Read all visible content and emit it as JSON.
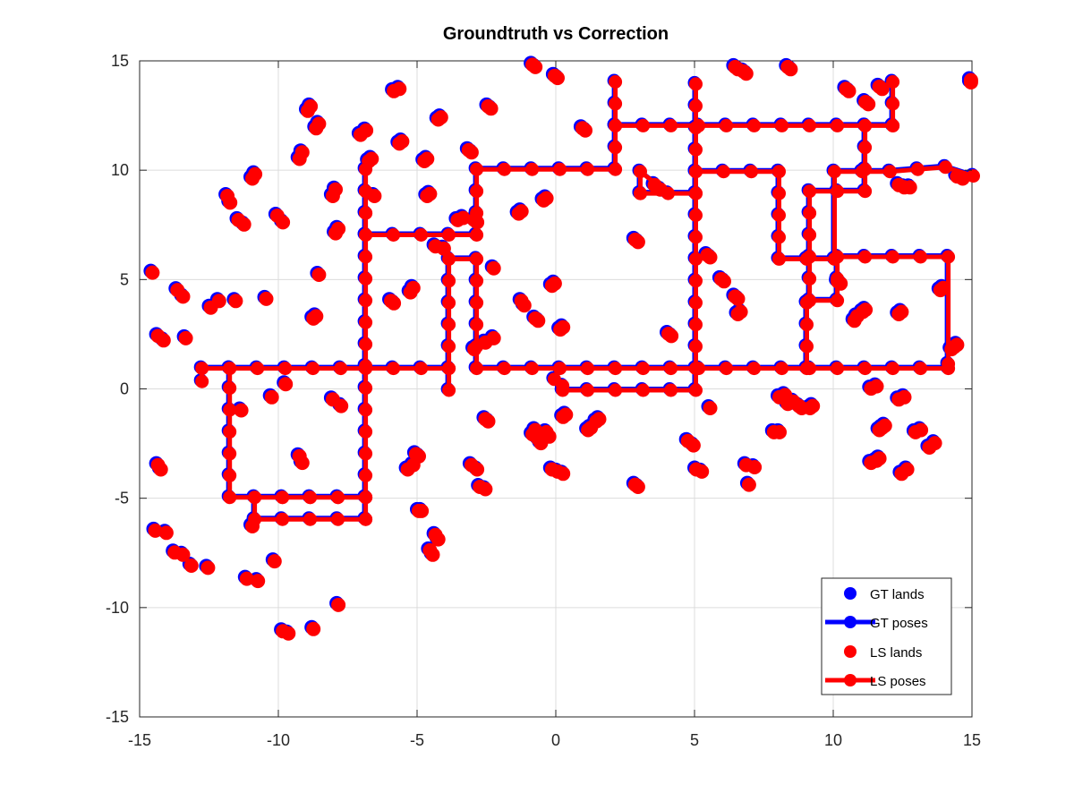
{
  "chart_data": {
    "type": "scatter",
    "title": "Groundtruth vs Correction",
    "xlabel": "",
    "ylabel": "",
    "xlim": [
      -15,
      15
    ],
    "ylim": [
      -15,
      15
    ],
    "xticks": [
      "-15",
      "-10",
      "-5",
      "0",
      "5",
      "10",
      "15"
    ],
    "yticks": [
      "-15",
      "-10",
      "-5",
      "0",
      "5",
      "10",
      "15"
    ],
    "grid": true,
    "legend_position": "bottom-right",
    "legend": [
      {
        "label": "GT lands",
        "color": "#0000ff",
        "style": "markers"
      },
      {
        "label": "GT poses",
        "color": "#0000ff",
        "style": "line+markers"
      },
      {
        "label": "LS lands",
        "color": "#ff0000",
        "style": "markers"
      },
      {
        "label": "LS poses",
        "color": "#ff0000",
        "style": "line+markers"
      }
    ],
    "landmarks": [
      [
        -14.6,
        5.4
      ],
      [
        -14.4,
        2.5
      ],
      [
        -14.2,
        2.3
      ],
      [
        -14.4,
        -3.4
      ],
      [
        -14.3,
        -3.6
      ],
      [
        -14.5,
        -6.4
      ],
      [
        -14.1,
        -6.5
      ],
      [
        -13.8,
        -7.4
      ],
      [
        -13.5,
        -7.5
      ],
      [
        -13.2,
        -8.0
      ],
      [
        -12.6,
        -8.1
      ],
      [
        -13.7,
        4.6
      ],
      [
        -13.5,
        4.3
      ],
      [
        -13.4,
        2.4
      ],
      [
        -12.5,
        3.8
      ],
      [
        -12.2,
        4.1
      ],
      [
        -11.6,
        4.1
      ],
      [
        -11.9,
        8.9
      ],
      [
        -11.8,
        8.6
      ],
      [
        -11.5,
        7.8
      ],
      [
        -11.3,
        7.6
      ],
      [
        -10.9,
        9.9
      ],
      [
        -11.0,
        9.7
      ],
      [
        -10.5,
        4.2
      ],
      [
        -10.1,
        8.0
      ],
      [
        -9.9,
        7.7
      ],
      [
        -11.4,
        -0.9
      ],
      [
        -10.3,
        -0.3
      ],
      [
        -9.8,
        0.3
      ],
      [
        -9.3,
        -3.0
      ],
      [
        -9.2,
        -3.3
      ],
      [
        -11.0,
        -6.2
      ],
      [
        -11.2,
        -8.6
      ],
      [
        -10.8,
        -8.7
      ],
      [
        -10.2,
        -7.8
      ],
      [
        -9.9,
        -11.0
      ],
      [
        -9.7,
        -11.1
      ],
      [
        -8.8,
        -10.9
      ],
      [
        -7.9,
        -9.8
      ],
      [
        -9.2,
        10.9
      ],
      [
        -9.3,
        10.6
      ],
      [
        -8.9,
        13.0
      ],
      [
        -9.0,
        12.8
      ],
      [
        -8.6,
        12.2
      ],
      [
        -8.7,
        12.0
      ],
      [
        -8.7,
        3.4
      ],
      [
        -8.8,
        3.3
      ],
      [
        -8.6,
        5.3
      ],
      [
        -8.0,
        9.2
      ],
      [
        -8.1,
        8.9
      ],
      [
        -7.9,
        7.4
      ],
      [
        -8.0,
        7.2
      ],
      [
        -8.1,
        -0.4
      ],
      [
        -7.8,
        -0.7
      ],
      [
        -7.1,
        11.7
      ],
      [
        -6.9,
        11.9
      ],
      [
        -6.7,
        10.6
      ],
      [
        -6.8,
        10.5
      ],
      [
        -6.6,
        8.9
      ],
      [
        -5.7,
        13.8
      ],
      [
        -5.9,
        13.7
      ],
      [
        -5.6,
        11.4
      ],
      [
        -5.7,
        11.3
      ],
      [
        -5.9,
        4.0
      ],
      [
        -6.0,
        4.1
      ],
      [
        -4.7,
        10.6
      ],
      [
        -4.8,
        10.5
      ],
      [
        -4.6,
        9.0
      ],
      [
        -4.7,
        8.9
      ],
      [
        -4.2,
        12.5
      ],
      [
        -4.3,
        12.4
      ],
      [
        -5.2,
        4.7
      ],
      [
        -5.3,
        4.5
      ],
      [
        -4.4,
        6.6
      ],
      [
        -4.1,
        6.5
      ],
      [
        -3.6,
        7.8
      ],
      [
        -3.4,
        7.9
      ],
      [
        -3.2,
        11.0
      ],
      [
        -3.1,
        10.9
      ],
      [
        -3.0,
        7.8
      ],
      [
        -2.9,
        7.7
      ],
      [
        -2.5,
        13.0
      ],
      [
        -2.4,
        12.9
      ],
      [
        -5.4,
        -3.6
      ],
      [
        -5.2,
        -3.4
      ],
      [
        -5.1,
        -2.9
      ],
      [
        -5.0,
        -3.0
      ],
      [
        -5.0,
        -5.5
      ],
      [
        -4.9,
        -5.5
      ],
      [
        -4.6,
        -7.3
      ],
      [
        -4.5,
        -7.5
      ],
      [
        -4.4,
        -6.6
      ],
      [
        -4.3,
        -6.8
      ],
      [
        -3.1,
        -3.4
      ],
      [
        -2.9,
        -3.6
      ],
      [
        -2.8,
        -4.4
      ],
      [
        -2.6,
        -4.5
      ],
      [
        -2.6,
        -1.3
      ],
      [
        -2.5,
        -1.4
      ],
      [
        -3.0,
        1.9
      ],
      [
        -2.6,
        2.2
      ],
      [
        -2.3,
        2.4
      ],
      [
        -2.3,
        5.6
      ],
      [
        -1.3,
        8.2
      ],
      [
        -1.4,
        8.1
      ],
      [
        -0.4,
        8.8
      ],
      [
        -0.5,
        8.7
      ],
      [
        -0.1,
        4.9
      ],
      [
        -0.2,
        4.8
      ],
      [
        -1.3,
        4.1
      ],
      [
        -1.2,
        3.9
      ],
      [
        -0.8,
        3.3
      ],
      [
        -0.7,
        3.2
      ],
      [
        0.2,
        2.9
      ],
      [
        0.1,
        2.8
      ],
      [
        -0.9,
        14.9
      ],
      [
        -0.8,
        14.8
      ],
      [
        -0.1,
        14.4
      ],
      [
        0.0,
        14.3
      ],
      [
        -0.8,
        -1.8
      ],
      [
        -0.9,
        -2.0
      ],
      [
        -0.7,
        -2.2
      ],
      [
        -0.6,
        -2.4
      ],
      [
        -0.4,
        -1.9
      ],
      [
        -0.3,
        -2.1
      ],
      [
        0.2,
        -1.2
      ],
      [
        0.3,
        -1.1
      ],
      [
        -0.2,
        -3.6
      ],
      [
        0.0,
        -3.7
      ],
      [
        0.2,
        -3.8
      ],
      [
        0.9,
        12.0
      ],
      [
        1.0,
        11.9
      ],
      [
        1.1,
        -1.8
      ],
      [
        1.2,
        -1.7
      ],
      [
        1.4,
        -1.4
      ],
      [
        1.5,
        -1.3
      ],
      [
        2.8,
        6.9
      ],
      [
        2.9,
        6.8
      ],
      [
        2.8,
        -4.3
      ],
      [
        2.9,
        -4.4
      ],
      [
        3.5,
        9.4
      ],
      [
        3.7,
        9.2
      ],
      [
        4.0,
        2.6
      ],
      [
        4.1,
        2.5
      ],
      [
        4.7,
        -2.3
      ],
      [
        4.9,
        -2.5
      ],
      [
        5.0,
        -3.6
      ],
      [
        5.2,
        -3.7
      ],
      [
        5.4,
        6.2
      ],
      [
        5.5,
        6.1
      ],
      [
        5.5,
        -0.8
      ],
      [
        5.9,
        5.1
      ],
      [
        6.0,
        5.0
      ],
      [
        6.4,
        4.3
      ],
      [
        6.5,
        4.2
      ],
      [
        6.5,
        3.5
      ],
      [
        6.6,
        3.6
      ],
      [
        6.8,
        -3.4
      ],
      [
        6.9,
        -4.3
      ],
      [
        7.1,
        -3.5
      ],
      [
        6.4,
        14.8
      ],
      [
        6.5,
        14.7
      ],
      [
        6.8,
        14.5
      ],
      [
        6.7,
        14.6
      ],
      [
        8.3,
        14.8
      ],
      [
        8.4,
        14.7
      ],
      [
        7.8,
        -1.9
      ],
      [
        8.0,
        -1.9
      ],
      [
        8.0,
        -0.3
      ],
      [
        8.2,
        -0.2
      ],
      [
        8.3,
        -0.6
      ],
      [
        8.5,
        -0.5
      ],
      [
        8.7,
        -0.7
      ],
      [
        8.8,
        -0.8
      ],
      [
        9.1,
        -0.8
      ],
      [
        9.2,
        -0.7
      ],
      [
        10.4,
        13.8
      ],
      [
        10.5,
        13.7
      ],
      [
        10.1,
        5.0
      ],
      [
        10.2,
        4.9
      ],
      [
        10.7,
        3.2
      ],
      [
        10.8,
        3.4
      ],
      [
        11.0,
        3.6
      ],
      [
        11.1,
        3.7
      ],
      [
        11.1,
        13.2
      ],
      [
        11.2,
        13.1
      ],
      [
        11.6,
        13.9
      ],
      [
        11.7,
        13.8
      ],
      [
        11.3,
        0.1
      ],
      [
        11.5,
        0.2
      ],
      [
        11.6,
        -1.8
      ],
      [
        11.7,
        -1.7
      ],
      [
        11.8,
        -1.6
      ],
      [
        11.3,
        -3.3
      ],
      [
        11.5,
        -3.2
      ],
      [
        11.6,
        -3.1
      ],
      [
        12.3,
        9.4
      ],
      [
        12.5,
        9.3
      ],
      [
        12.7,
        9.3
      ],
      [
        12.3,
        3.5
      ],
      [
        12.4,
        3.6
      ],
      [
        12.3,
        -0.4
      ],
      [
        12.5,
        -0.3
      ],
      [
        12.4,
        -3.8
      ],
      [
        12.6,
        -3.6
      ],
      [
        12.9,
        -1.9
      ],
      [
        13.1,
        -1.8
      ],
      [
        13.4,
        -2.6
      ],
      [
        13.6,
        -2.4
      ],
      [
        13.8,
        4.6
      ],
      [
        13.9,
        4.7
      ],
      [
        14.2,
        1.9
      ],
      [
        14.3,
        2.0
      ],
      [
        14.4,
        2.1
      ],
      [
        14.4,
        9.8
      ],
      [
        14.6,
        9.7
      ],
      [
        14.9,
        14.1
      ],
      [
        14.9,
        14.2
      ]
    ],
    "pose_path": [
      [
        -12.8,
        0.4
      ],
      [
        -12.8,
        1.0
      ],
      [
        -11.8,
        1.0
      ],
      [
        -10.8,
        1.0
      ],
      [
        -9.8,
        1.0
      ],
      [
        -8.8,
        1.0
      ],
      [
        -7.8,
        1.0
      ],
      [
        -6.9,
        1.0
      ],
      [
        -5.9,
        1.0
      ],
      [
        -4.9,
        1.0
      ],
      [
        -3.9,
        1.0
      ],
      [
        -3.9,
        0.0
      ],
      [
        -3.9,
        1.0
      ],
      [
        -3.9,
        2.0
      ],
      [
        -3.9,
        3.0
      ],
      [
        -3.9,
        4.0
      ],
      [
        -3.9,
        5.0
      ],
      [
        -3.9,
        6.0
      ],
      [
        -2.9,
        6.0
      ],
      [
        -2.9,
        5.0
      ],
      [
        -2.9,
        4.0
      ],
      [
        -2.9,
        3.0
      ],
      [
        -2.9,
        2.0
      ],
      [
        -2.9,
        1.0
      ],
      [
        -1.9,
        1.0
      ],
      [
        -0.9,
        1.0
      ],
      [
        0.1,
        1.0
      ],
      [
        1.1,
        1.0
      ],
      [
        2.1,
        1.0
      ],
      [
        3.1,
        1.0
      ],
      [
        4.1,
        1.0
      ],
      [
        5.1,
        1.0
      ],
      [
        6.1,
        1.0
      ],
      [
        7.1,
        1.0
      ],
      [
        8.1,
        1.0
      ],
      [
        9.1,
        1.0
      ],
      [
        10.1,
        1.0
      ],
      [
        11.1,
        1.0
      ],
      [
        12.1,
        1.0
      ],
      [
        13.1,
        1.0
      ],
      [
        14.1,
        1.0
      ],
      [
        14.1,
        1.2
      ],
      [
        14.1,
        6.1
      ],
      [
        13.1,
        6.1
      ],
      [
        12.1,
        6.1
      ],
      [
        11.1,
        6.1
      ],
      [
        10.1,
        6.1
      ],
      [
        10.1,
        5.1
      ],
      [
        10.1,
        4.1
      ],
      [
        9.1,
        4.1
      ],
      [
        9.1,
        5.1
      ],
      [
        9.1,
        6.1
      ],
      [
        9.1,
        7.1
      ],
      [
        9.1,
        8.1
      ],
      [
        9.1,
        9.1
      ],
      [
        10.1,
        9.1
      ],
      [
        11.1,
        9.1
      ],
      [
        11.1,
        10.1
      ],
      [
        11.1,
        11.1
      ],
      [
        11.1,
        12.1
      ],
      [
        12.1,
        12.1
      ],
      [
        12.1,
        13.1
      ],
      [
        12.1,
        14.1
      ],
      [
        12.1,
        12.1
      ],
      [
        11.1,
        12.1
      ],
      [
        10.1,
        12.1
      ],
      [
        9.1,
        12.1
      ],
      [
        8.1,
        12.1
      ],
      [
        7.1,
        12.1
      ],
      [
        6.1,
        12.1
      ],
      [
        5.1,
        12.1
      ],
      [
        4.1,
        12.1
      ],
      [
        3.1,
        12.1
      ],
      [
        2.1,
        12.1
      ],
      [
        2.1,
        13.1
      ],
      [
        2.1,
        14.1
      ],
      [
        2.1,
        12.1
      ],
      [
        2.1,
        11.1
      ],
      [
        2.1,
        10.1
      ],
      [
        1.1,
        10.1
      ],
      [
        0.1,
        10.1
      ],
      [
        -0.9,
        10.1
      ],
      [
        -1.9,
        10.1
      ],
      [
        -2.9,
        10.1
      ],
      [
        -2.9,
        9.1
      ],
      [
        -2.9,
        8.1
      ],
      [
        -2.9,
        7.1
      ],
      [
        -3.9,
        7.1
      ],
      [
        -4.9,
        7.1
      ],
      [
        -5.9,
        7.1
      ],
      [
        -6.9,
        7.1
      ],
      [
        -6.9,
        8.1
      ],
      [
        -6.9,
        9.1
      ],
      [
        -6.9,
        10.1
      ],
      [
        -6.9,
        9.1
      ],
      [
        -6.9,
        8.1
      ],
      [
        -6.9,
        7.1
      ],
      [
        -6.9,
        6.1
      ],
      [
        -6.9,
        5.1
      ],
      [
        -6.9,
        4.1
      ],
      [
        -6.9,
        3.1
      ],
      [
        -6.9,
        2.1
      ],
      [
        -6.9,
        1.1
      ],
      [
        -6.9,
        0.1
      ],
      [
        -6.9,
        -0.9
      ],
      [
        -6.9,
        -1.9
      ],
      [
        -6.9,
        -2.9
      ],
      [
        -6.9,
        -3.9
      ],
      [
        -6.9,
        -4.9
      ],
      [
        -6.9,
        -5.9
      ],
      [
        -7.9,
        -5.9
      ],
      [
        -8.9,
        -5.9
      ],
      [
        -9.9,
        -5.9
      ],
      [
        -10.9,
        -5.9
      ],
      [
        -10.9,
        -4.9
      ],
      [
        -9.9,
        -4.9
      ],
      [
        -8.9,
        -4.9
      ],
      [
        -7.9,
        -4.9
      ],
      [
        -6.9,
        -4.9
      ],
      [
        -6.9,
        -5.9
      ],
      [
        -6.9,
        -4.9
      ],
      [
        -7.9,
        -4.9
      ],
      [
        -8.9,
        -4.9
      ],
      [
        -9.9,
        -4.9
      ],
      [
        -10.9,
        -4.9
      ],
      [
        -11.8,
        -4.9
      ],
      [
        -11.8,
        -3.9
      ],
      [
        -11.8,
        -2.9
      ],
      [
        -11.8,
        -1.9
      ],
      [
        -11.8,
        -0.9
      ],
      [
        -11.8,
        0.1
      ],
      [
        -11.8,
        1.0
      ]
    ],
    "pose_path_2": [
      [
        -0.1,
        0.5
      ],
      [
        0.2,
        0.2
      ],
      [
        0.2,
        0.0
      ],
      [
        1.1,
        0.0
      ],
      [
        2.1,
        0.0
      ],
      [
        3.1,
        0.0
      ],
      [
        4.1,
        0.0
      ],
      [
        5.0,
        0.0
      ],
      [
        5.0,
        1.0
      ],
      [
        5.0,
        2.0
      ],
      [
        5.0,
        3.0
      ],
      [
        5.0,
        4.0
      ],
      [
        5.0,
        5.0
      ],
      [
        5.0,
        6.0
      ],
      [
        5.0,
        7.0
      ],
      [
        5.0,
        8.0
      ],
      [
        5.0,
        9.0
      ],
      [
        5.0,
        10.0
      ],
      [
        5.0,
        11.0
      ],
      [
        5.0,
        12.0
      ],
      [
        5.0,
        13.0
      ],
      [
        5.0,
        14.0
      ],
      [
        5.0,
        10.0
      ],
      [
        6.0,
        10.0
      ],
      [
        7.0,
        10.0
      ],
      [
        8.0,
        10.0
      ],
      [
        8.0,
        9.0
      ],
      [
        8.0,
        8.0
      ],
      [
        8.0,
        7.0
      ],
      [
        8.0,
        6.0
      ],
      [
        9.0,
        6.0
      ],
      [
        10.0,
        6.0
      ],
      [
        10.0,
        10.0
      ],
      [
        11.0,
        10.0
      ],
      [
        12.0,
        10.0
      ],
      [
        13.0,
        10.1
      ],
      [
        14.0,
        10.2
      ],
      [
        15.0,
        9.8
      ]
    ],
    "pose_path_3": [
      [
        3.0,
        9.0
      ],
      [
        3.0,
        10.0
      ],
      [
        4.0,
        9.0
      ],
      [
        5.0,
        9.0
      ],
      [
        3.0,
        9.0
      ]
    ],
    "pose_path_4": [
      [
        9.0,
        1.0
      ],
      [
        9.0,
        2.0
      ],
      [
        9.0,
        3.0
      ],
      [
        9.0,
        4.0
      ]
    ]
  }
}
